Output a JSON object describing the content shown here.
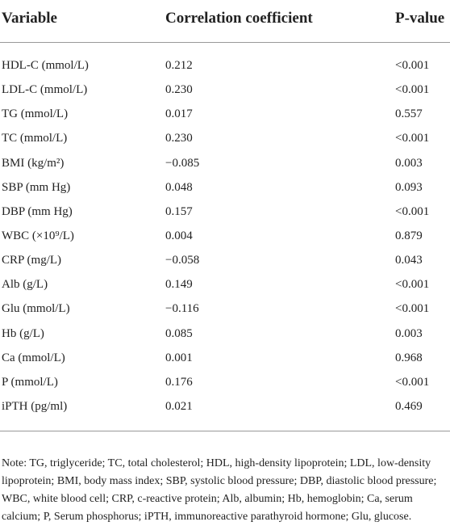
{
  "table": {
    "header": [
      "Variable",
      "Correlation coefficient",
      "P-value"
    ],
    "rows": [
      [
        "HDL-C (mmol/L)",
        "0.212",
        "<0.001"
      ],
      [
        "LDL-C (mmol/L)",
        "0.230",
        "<0.001"
      ],
      [
        "TG (mmol/L)",
        "0.017",
        "0.557"
      ],
      [
        "TC (mmol/L)",
        "0.230",
        "<0.001"
      ],
      [
        "BMI (kg/m²)",
        "−0.085",
        "0.003"
      ],
      [
        "SBP (mm Hg)",
        "0.048",
        "0.093"
      ],
      [
        "DBP (mm Hg)",
        "0.157",
        "<0.001"
      ],
      [
        "WBC (×10⁹/L)",
        "0.004",
        "0.879"
      ],
      [
        "CRP (mg/L)",
        "−0.058",
        "0.043"
      ],
      [
        "Alb (g/L)",
        "0.149",
        "<0.001"
      ],
      [
        "Glu (mmol/L)",
        "−0.116",
        "<0.001"
      ],
      [
        "Hb (g/L)",
        "0.085",
        "0.003"
      ],
      [
        "Ca (mmol/L)",
        "0.001",
        "0.968"
      ],
      [
        "P (mmol/L)",
        "0.176",
        "<0.001"
      ],
      [
        "iPTH (pg/ml)",
        "0.021",
        "0.469"
      ]
    ]
  },
  "note": "Note: TG, triglyceride; TC, total cholesterol; HDL, high-density lipoprotein; LDL, low-density lipoprotein; BMI, body mass index; SBP, systolic blood pressure; DBP, diastolic blood pressure; WBC, white blood cell; CRP, c-reactive protein; Alb, albumin; Hb, hemoglobin; Ca, serum calcium; P, Serum phosphorus; iPTH, immunoreactive parathyroid hormone; Glu, glucose."
}
